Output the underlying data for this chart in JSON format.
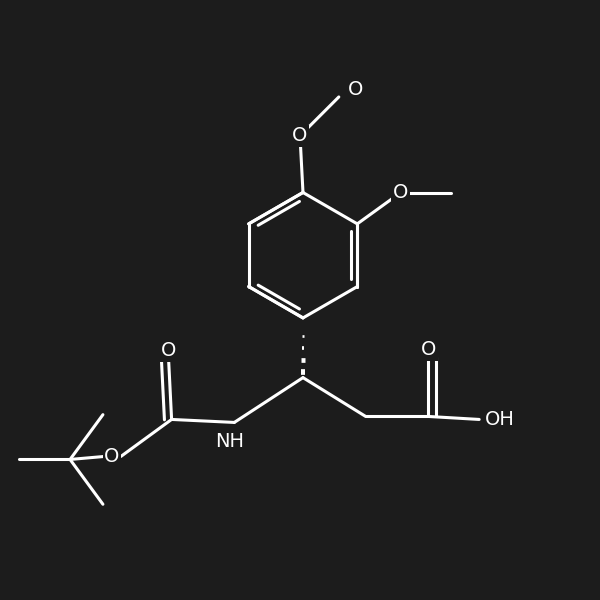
{
  "bg_color": "#1c1c1c",
  "line_color": "#ffffff",
  "line_width": 2.2,
  "figsize": [
    6.0,
    6.0
  ],
  "dpi": 100,
  "font_size": 14,
  "font_color": "#ffffff",
  "xlim": [
    0,
    10
  ],
  "ylim": [
    0,
    10
  ]
}
